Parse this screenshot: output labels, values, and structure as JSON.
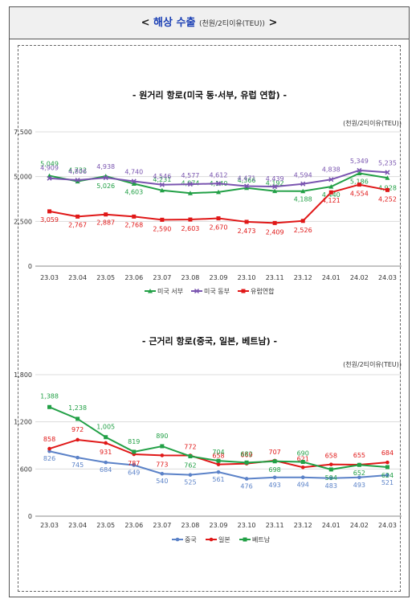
{
  "header": {
    "prefix": "<",
    "title": "해상 수출",
    "unit": "(천원/2티이유(TEU))",
    "suffix": ">"
  },
  "chart_data": [
    {
      "type": "line",
      "title": "- 원거리 항로(미국 동·서부, 유럽 연합) -",
      "unit_label": "(천원/2티이유(TEU))",
      "categories": [
        "23.03",
        "23.04",
        "23.05",
        "23.06",
        "23.07",
        "23.08",
        "23.09",
        "23.10",
        "23.11",
        "23.12",
        "24.01",
        "24.02",
        "24.03"
      ],
      "ylim": [
        0,
        7500
      ],
      "yticks": [
        0,
        2500,
        5000,
        7500
      ],
      "ytick_labels": [
        "0",
        "2,500",
        "5,000",
        "7,500"
      ],
      "legend_position": "bottom-center",
      "series": [
        {
          "name": "미국 서부",
          "color": "#22a046",
          "marker": "triangle",
          "values": [
            5049,
            4732,
            5026,
            4603,
            4231,
            4074,
            4140,
            4366,
            4192,
            4188,
            4440,
            5186,
            4928
          ],
          "labels": [
            "5,049",
            "4,732",
            "5,026",
            "4,603",
            "4,231",
            "4,074",
            "4,140",
            "4,366",
            "4,192",
            "4,188",
            "4,440",
            "5,186",
            "4,928"
          ]
        },
        {
          "name": "미국 동부",
          "color": "#7a55b0",
          "marker": "x",
          "values": [
            4909,
            4806,
            4938,
            4740,
            4546,
            4577,
            4612,
            4471,
            4439,
            4594,
            4838,
            5349,
            5235
          ],
          "labels": [
            "4,909",
            "4,806",
            "4,938",
            "4,740",
            "4,546",
            "4,577",
            "4,612",
            "4,471",
            "4,439",
            "4,594",
            "4,838",
            "5,349",
            "5,235"
          ]
        },
        {
          "name": "유럽연합",
          "color": "#e01818",
          "marker": "square",
          "values": [
            3059,
            2767,
            2887,
            2768,
            2590,
            2603,
            2670,
            2473,
            2409,
            2526,
            4121,
            4554,
            4252
          ],
          "labels": [
            "3,059",
            "2,767",
            "2,887",
            "2,768",
            "2,590",
            "2,603",
            "2,670",
            "2,473",
            "2,409",
            "2,526",
            "4,121",
            "4,554",
            "4,252"
          ]
        }
      ]
    },
    {
      "type": "line",
      "title": "- 근거리 항로(중국, 일본, 베트남) -",
      "unit_label": "(천원/2티이유(TEU))",
      "categories": [
        "23.03",
        "23.04",
        "23.05",
        "23.06",
        "23.07",
        "23.08",
        "23.09",
        "23.10",
        "23.11",
        "23.12",
        "24.01",
        "24.02",
        "24.03"
      ],
      "ylim": [
        0,
        1800
      ],
      "yticks": [
        0,
        600,
        1200,
        1800
      ],
      "ytick_labels": [
        "0",
        "600",
        "1,200",
        "1,800"
      ],
      "legend_position": "bottom-center",
      "series": [
        {
          "name": "중국",
          "color": "#5b82c8",
          "marker": "circle",
          "values": [
            826,
            745,
            684,
            649,
            540,
            525,
            561,
            476,
            493,
            494,
            483,
            493,
            521
          ],
          "labels": [
            "826",
            "745",
            "684",
            "649",
            "540",
            "525",
            "561",
            "476",
            "493",
            "494",
            "483",
            "493",
            "521"
          ]
        },
        {
          "name": "일본",
          "color": "#e01818",
          "marker": "circle",
          "values": [
            858,
            972,
            931,
            787,
            773,
            772,
            658,
            669,
            707,
            621,
            658,
            655,
            684
          ],
          "labels": [
            "858",
            "972",
            "931",
            "787",
            "773",
            "772",
            "658",
            "669",
            "707",
            "621",
            "658",
            "655",
            "684"
          ]
        },
        {
          "name": "베트남",
          "color": "#22a046",
          "marker": "square",
          "values": [
            1388,
            1238,
            1005,
            819,
            890,
            762,
            704,
            682,
            698,
            690,
            594,
            652,
            624
          ],
          "labels": [
            "1,388",
            "1,238",
            "1,005",
            "819",
            "890",
            "762",
            "704",
            "682",
            "698",
            "690",
            "594",
            "652",
            "624"
          ]
        }
      ]
    }
  ]
}
